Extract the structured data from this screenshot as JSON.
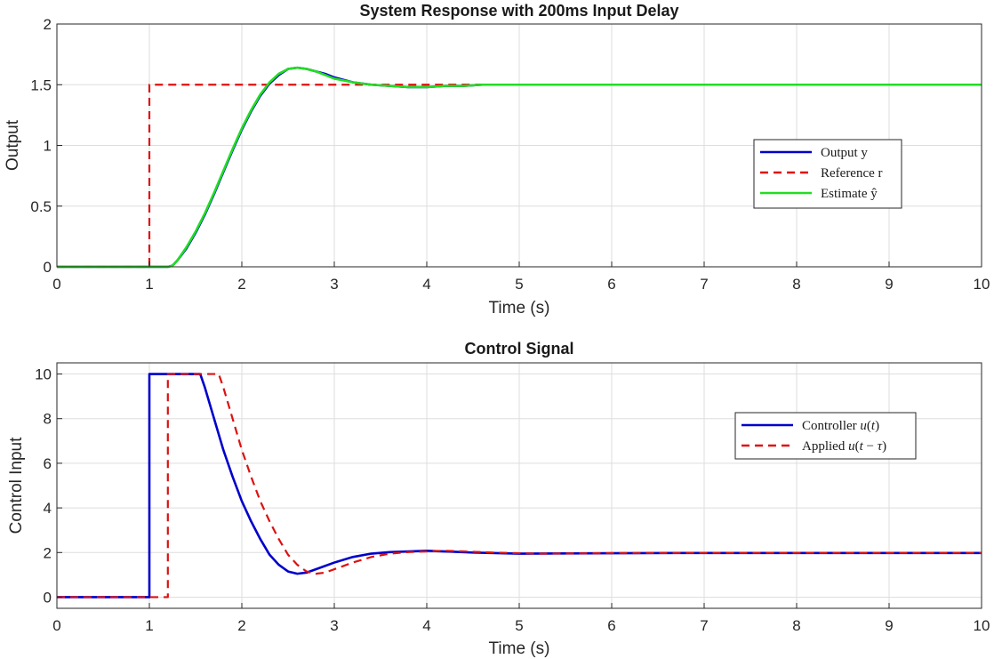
{
  "chart_data": [
    {
      "type": "line",
      "title": "System Response with 200ms Input Delay",
      "xlabel": "Time (s)",
      "ylabel": "Output",
      "xlim": [
        0,
        10
      ],
      "ylim": [
        0,
        2
      ],
      "xticks": [
        "0",
        "1",
        "2",
        "3",
        "4",
        "5",
        "6",
        "7",
        "8",
        "9",
        "10"
      ],
      "yticks": [
        "0",
        "0.5",
        "1",
        "1.5",
        "2"
      ],
      "grid": true,
      "legend_position": "right",
      "series": [
        {
          "name": "Output y",
          "color": "#0000cc",
          "dash": "solid",
          "x": [
            0,
            1.2,
            1.25,
            1.3,
            1.4,
            1.5,
            1.6,
            1.7,
            1.8,
            1.9,
            2.0,
            2.1,
            2.2,
            2.3,
            2.4,
            2.5,
            2.6,
            2.7,
            2.8,
            2.9,
            3.0,
            3.2,
            3.4,
            3.6,
            3.8,
            4.0,
            4.2,
            4.4,
            4.6,
            4.8,
            5.0,
            6.0,
            7.0,
            8.0,
            9.0,
            10.0
          ],
          "y": [
            0,
            0,
            0.01,
            0.05,
            0.15,
            0.28,
            0.43,
            0.6,
            0.78,
            0.96,
            1.13,
            1.28,
            1.41,
            1.51,
            1.58,
            1.63,
            1.64,
            1.63,
            1.61,
            1.59,
            1.56,
            1.52,
            1.5,
            1.49,
            1.48,
            1.48,
            1.49,
            1.49,
            1.5,
            1.5,
            1.5,
            1.5,
            1.5,
            1.5,
            1.5,
            1.5
          ]
        },
        {
          "name": "Reference r",
          "color": "#dd1111",
          "dash": "dashed",
          "x": [
            0,
            1.0,
            1.0,
            10.0
          ],
          "y": [
            0,
            0,
            1.5,
            1.5
          ]
        },
        {
          "name": "Estimate ŷ",
          "color": "#22dd22",
          "dash": "solid",
          "x": [
            0,
            1.2,
            1.25,
            1.3,
            1.4,
            1.5,
            1.6,
            1.7,
            1.8,
            1.9,
            2.0,
            2.1,
            2.2,
            2.3,
            2.4,
            2.5,
            2.6,
            2.7,
            2.8,
            2.9,
            3.0,
            3.2,
            3.4,
            3.6,
            3.8,
            4.0,
            4.2,
            4.4,
            4.6,
            4.8,
            5.0,
            6.0,
            7.0,
            8.0,
            9.0,
            10.0
          ],
          "y": [
            0,
            0,
            0.01,
            0.05,
            0.16,
            0.29,
            0.44,
            0.61,
            0.79,
            0.97,
            1.14,
            1.29,
            1.42,
            1.52,
            1.59,
            1.63,
            1.64,
            1.63,
            1.61,
            1.58,
            1.55,
            1.52,
            1.5,
            1.49,
            1.48,
            1.48,
            1.49,
            1.49,
            1.5,
            1.5,
            1.5,
            1.5,
            1.5,
            1.5,
            1.5,
            1.5
          ]
        }
      ]
    },
    {
      "type": "line",
      "title": "Control Signal",
      "xlabel": "Time (s)",
      "ylabel": "Control Input",
      "xlim": [
        0,
        10
      ],
      "ylim": [
        -0.5,
        10.5
      ],
      "xticks": [
        "0",
        "1",
        "2",
        "3",
        "4",
        "5",
        "6",
        "7",
        "8",
        "9",
        "10"
      ],
      "yticks": [
        "0",
        "2",
        "4",
        "6",
        "8",
        "10"
      ],
      "grid": true,
      "legend_position": "top-right",
      "series": [
        {
          "name": "Controller u(t)",
          "label_parts": [
            "Controller ",
            "u",
            "(",
            "t",
            ")"
          ],
          "color": "#0000cc",
          "dash": "solid",
          "x": [
            0,
            1.0,
            1.0,
            1.55,
            1.6,
            1.7,
            1.8,
            1.9,
            2.0,
            2.1,
            2.2,
            2.3,
            2.4,
            2.5,
            2.6,
            2.7,
            2.8,
            3.0,
            3.2,
            3.4,
            3.6,
            3.8,
            4.0,
            4.2,
            4.5,
            5.0,
            6.0,
            7.0,
            8.0,
            9.0,
            10.0
          ],
          "y": [
            0,
            0,
            10,
            10,
            9.4,
            8.0,
            6.6,
            5.4,
            4.3,
            3.4,
            2.6,
            1.9,
            1.45,
            1.15,
            1.05,
            1.1,
            1.25,
            1.55,
            1.8,
            1.95,
            2.02,
            2.05,
            2.08,
            2.05,
            2.0,
            1.95,
            1.97,
            1.98,
            1.98,
            1.98,
            1.98
          ]
        },
        {
          "name": "Applied u(t − τ)",
          "label_parts": [
            "Applied ",
            "u",
            "(",
            "t",
            " − ",
            "τ",
            ")"
          ],
          "color": "#dd1111",
          "dash": "dashed",
          "x": [
            0,
            1.2,
            1.2,
            1.75,
            1.8,
            1.9,
            2.0,
            2.1,
            2.2,
            2.3,
            2.4,
            2.5,
            2.6,
            2.7,
            2.8,
            2.9,
            3.0,
            3.2,
            3.4,
            3.6,
            3.8,
            4.0,
            4.2,
            4.4,
            4.7,
            5.2,
            6.0,
            7.0,
            8.0,
            9.0,
            10.0
          ],
          "y": [
            0,
            0,
            10,
            10,
            9.4,
            8.0,
            6.6,
            5.4,
            4.3,
            3.4,
            2.6,
            1.9,
            1.45,
            1.15,
            1.05,
            1.1,
            1.25,
            1.55,
            1.8,
            1.95,
            2.02,
            2.05,
            2.08,
            2.05,
            2.0,
            1.95,
            1.97,
            1.98,
            1.98,
            1.98,
            1.98
          ]
        }
      ]
    }
  ]
}
